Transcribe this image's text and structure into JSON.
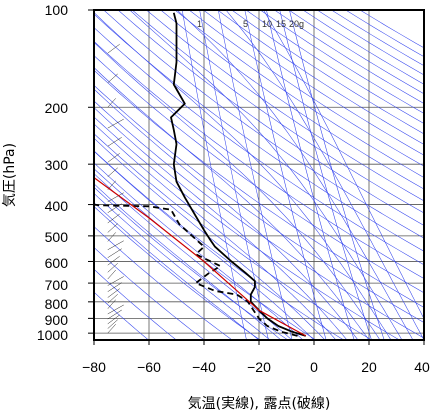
{
  "chart_data": {
    "type": "line",
    "xlabel": "気温(実線), 露点(破線)",
    "ylabel": "気圧(hPa)",
    "xlim": [
      -80,
      40
    ],
    "ylim": [
      1050,
      100
    ],
    "y_scale": "log",
    "x_ticks": [
      "−80",
      "−60",
      "−40",
      "−20",
      "0",
      "20",
      "40"
    ],
    "x_tick_values": [
      -80,
      -60,
      -40,
      -20,
      0,
      20,
      40
    ],
    "y_ticks": [
      "100",
      "200",
      "300",
      "400",
      "500",
      "600",
      "700",
      "800",
      "900",
      "1000"
    ],
    "y_tick_values": [
      100,
      200,
      300,
      400,
      500,
      600,
      700,
      800,
      900,
      1000
    ],
    "mixing_ratio_labels": [
      "1",
      "5",
      "10",
      "15",
      "20g"
    ],
    "series": [
      {
        "style": "solid",
        "color": "#000000",
        "points": [
          [
            -3,
            1020
          ],
          [
            -8,
            990
          ],
          [
            -13,
            950
          ],
          [
            -17,
            900
          ],
          [
            -20,
            850
          ],
          [
            -23,
            800
          ],
          [
            -23,
            760
          ],
          [
            -21.5,
            720
          ],
          [
            -21.5,
            690
          ],
          [
            -25,
            650
          ],
          [
            -30,
            600
          ],
          [
            -36,
            540
          ],
          [
            -38,
            510
          ],
          [
            -40,
            480
          ],
          [
            -44,
            420
          ],
          [
            -47,
            380
          ],
          [
            -50,
            340
          ],
          [
            -51,
            300
          ],
          [
            -50,
            260
          ],
          [
            -51,
            235
          ],
          [
            -52,
            215
          ],
          [
            -47,
            195
          ],
          [
            -51,
            170
          ],
          [
            -50,
            145
          ],
          [
            -50,
            125
          ],
          [
            -50,
            110
          ],
          [
            -51,
            102
          ]
        ]
      },
      {
        "style": "dashed",
        "color": "#000000",
        "points": [
          [
            -6,
            1020
          ],
          [
            -12,
            990
          ],
          [
            -17,
            950
          ],
          [
            -20,
            900
          ],
          [
            -22,
            850
          ],
          [
            -24,
            800
          ],
          [
            -28,
            760
          ],
          [
            -36,
            740
          ],
          [
            -43,
            700
          ],
          [
            -38,
            650
          ],
          [
            -34,
            620
          ],
          [
            -43,
            570
          ],
          [
            -40,
            540
          ],
          [
            -49,
            460
          ],
          [
            -52,
            415
          ],
          [
            -60,
            405
          ],
          [
            -78,
            402
          ],
          [
            -80,
            400
          ]
        ]
      },
      {
        "style": "solid",
        "color": "#cc0000",
        "points": [
          [
            -3,
            1020
          ],
          [
            -20,
            850
          ],
          [
            -40,
            600
          ],
          [
            -60,
            440
          ],
          [
            -80,
            330
          ]
        ]
      }
    ],
    "grid": true
  }
}
